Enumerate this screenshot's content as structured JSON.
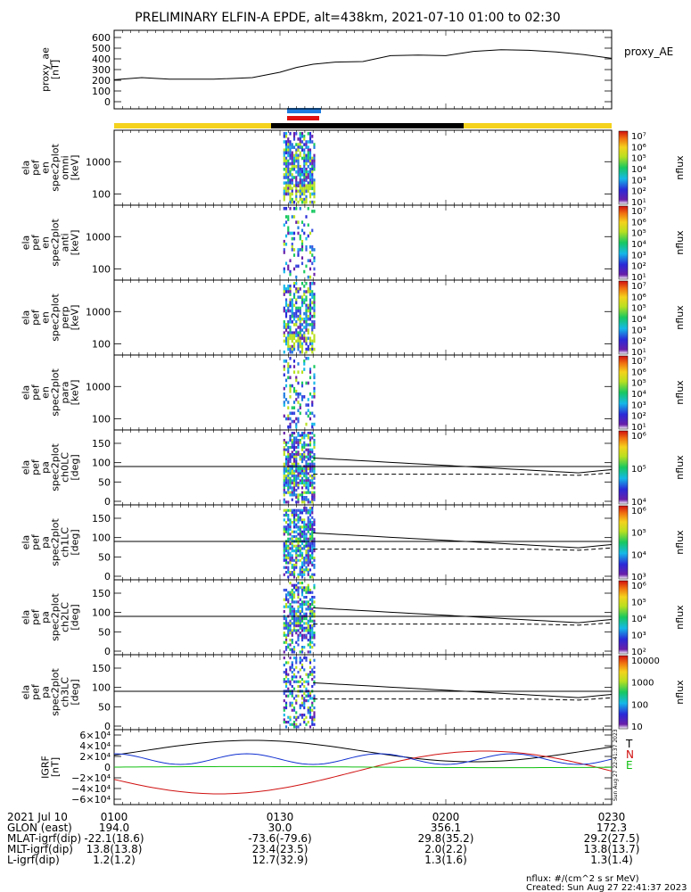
{
  "title": "PRELIMINARY ELFIN-A EPDE, alt=438km, 2021-07-10 01:00 to 02:30",
  "colors": {
    "line": "#000000",
    "bar_yellow": "#f4d21d",
    "bar_black": "#000000",
    "indicator_blue": "#1e7be0",
    "indicator_red": "#e01010",
    "grf_x": "#d01010",
    "grf_y": "#1030d0",
    "grf_z": "#10c010"
  },
  "chart_data": [
    {
      "type": "line",
      "panel": "proxy_ae",
      "ylabel_lines": [
        "proxy_ae",
        "[nT]"
      ],
      "legend": "proxy_AE",
      "yticks": [
        "0",
        "100",
        "200",
        "300",
        "400",
        "500",
        "600"
      ],
      "ylim": [
        0,
        650
      ],
      "xlim_min": [
        0,
        90
      ],
      "x": [
        0,
        5,
        10,
        18,
        25,
        30,
        33,
        36,
        40,
        45,
        50,
        55,
        60,
        65,
        70,
        75,
        80,
        85,
        90
      ],
      "y": [
        205,
        225,
        210,
        210,
        225,
        275,
        320,
        350,
        370,
        375,
        430,
        435,
        430,
        470,
        485,
        480,
        465,
        440,
        405
      ]
    },
    {
      "type": "heatmap",
      "panel": "omni",
      "ylabel_lines": [
        "ela",
        "pef",
        "en",
        "spec2plot",
        "omni",
        "[keV]"
      ],
      "yticks": [
        "1000",
        "100"
      ],
      "yscale": "log",
      "cbar_ticks": [
        "10⁷",
        "10⁶",
        "10⁵",
        "10⁴",
        "10³",
        "10²",
        "10¹"
      ],
      "cbar_label": "nflux"
    },
    {
      "type": "heatmap",
      "panel": "anti",
      "ylabel_lines": [
        "ela",
        "pef",
        "en",
        "spec2plot",
        "anti",
        "[keV]"
      ],
      "yticks": [
        "1000",
        "100"
      ],
      "yscale": "log",
      "cbar_ticks": [
        "10⁷",
        "10⁶",
        "10⁵",
        "10⁴",
        "10³",
        "10²",
        "10¹"
      ],
      "cbar_label": "nflux"
    },
    {
      "type": "heatmap",
      "panel": "perp",
      "ylabel_lines": [
        "ela",
        "pef",
        "en",
        "spec2plot",
        "perp",
        "[keV]"
      ],
      "yticks": [
        "1000",
        "100"
      ],
      "yscale": "log",
      "cbar_ticks": [
        "10⁷",
        "10⁶",
        "10⁵",
        "10⁴",
        "10³",
        "10²",
        "10¹"
      ],
      "cbar_label": "nflux"
    },
    {
      "type": "heatmap",
      "panel": "para",
      "ylabel_lines": [
        "ela",
        "pef",
        "en",
        "spec2plot",
        "para",
        "[keV]"
      ],
      "yticks": [
        "1000",
        "100"
      ],
      "yscale": "log",
      "cbar_ticks": [
        "10⁷",
        "10⁶",
        "10⁵",
        "10⁴",
        "10³",
        "10²",
        "10¹"
      ],
      "cbar_label": "nflux"
    },
    {
      "type": "heatmap",
      "panel": "ch0LC",
      "ylabel_lines": [
        "ela",
        "pef",
        "pa",
        "spec2plot",
        "ch0LC",
        "[deg]"
      ],
      "yticks": [
        "150",
        "100",
        "50",
        "0"
      ],
      "ylim": [
        0,
        180
      ],
      "cbar_ticks": [
        "10⁶",
        "10⁵",
        "10⁴"
      ],
      "cbar_label": "nflux"
    },
    {
      "type": "heatmap",
      "panel": "ch1LC",
      "ylabel_lines": [
        "ela",
        "pef",
        "pa",
        "spec2plot",
        "ch1LC",
        "[deg]"
      ],
      "yticks": [
        "150",
        "100",
        "50",
        "0"
      ],
      "ylim": [
        0,
        180
      ],
      "cbar_ticks": [
        "10⁶",
        "10⁵",
        "10⁴",
        "10³"
      ],
      "cbar_label": "nflux"
    },
    {
      "type": "heatmap",
      "panel": "ch2LC",
      "ylabel_lines": [
        "ela",
        "pef",
        "pa",
        "spec2plot",
        "ch2LC",
        "[deg]"
      ],
      "yticks": [
        "150",
        "100",
        "50",
        "0"
      ],
      "ylim": [
        0,
        180
      ],
      "cbar_ticks": [
        "10⁶",
        "10⁵",
        "10⁴",
        "10³",
        "10²"
      ],
      "cbar_label": "nflux"
    },
    {
      "type": "heatmap",
      "panel": "ch3LC",
      "ylabel_lines": [
        "ela",
        "pef",
        "pa",
        "spec2plot",
        "ch3LC",
        "[deg]"
      ],
      "yticks": [
        "150",
        "100",
        "50",
        "0"
      ],
      "ylim": [
        0,
        180
      ],
      "cbar_ticks": [
        "10000",
        "1000",
        "100",
        "10"
      ],
      "cbar_label": "nflux"
    },
    {
      "type": "line",
      "panel": "IGRF",
      "ylabel_lines": [
        "IGRF",
        "[nT]"
      ],
      "yticks": [
        "6×10⁴",
        "4×10⁴",
        "2×10⁴",
        "0",
        "−2×10⁴",
        "−4×10⁴",
        "−6×10⁴"
      ],
      "ylim": [
        -60000,
        60000
      ],
      "xlim_min": [
        0,
        90
      ],
      "legend": [
        "T",
        "N",
        "E"
      ]
    }
  ],
  "footer": {
    "rows": [
      {
        "label": "2021 Jul 10",
        "values": [
          "0100",
          "0130",
          "0200",
          "0230"
        ]
      },
      {
        "label": "GLON (east)",
        "values": [
          "194.0",
          "30.0",
          "356.1",
          "172.3"
        ]
      },
      {
        "label": "MLAT-igrf(dip)",
        "values": [
          "-22.1(18.6)",
          "-73.6(-79.6)",
          "29.8(35.2)",
          "29.2(27.5)"
        ]
      },
      {
        "label": "MLT-igrf(dip)",
        "values": [
          "13.8(13.8)",
          "23.4(23.5)",
          "2.0(2.2)",
          "13.8(13.7)"
        ]
      },
      {
        "label": "L-igrf(dip)",
        "values": [
          "1.2(1.2)",
          "12.7(32.9)",
          "1.3(1.6)",
          "1.3(1.4)"
        ]
      }
    ],
    "units": "nflux: #/(cm^2 s sr MeV)",
    "created": "Created: Sun Aug 27 22:41:37 2023",
    "side_stamp": "Sun Aug 27 22:41:37 2023"
  }
}
